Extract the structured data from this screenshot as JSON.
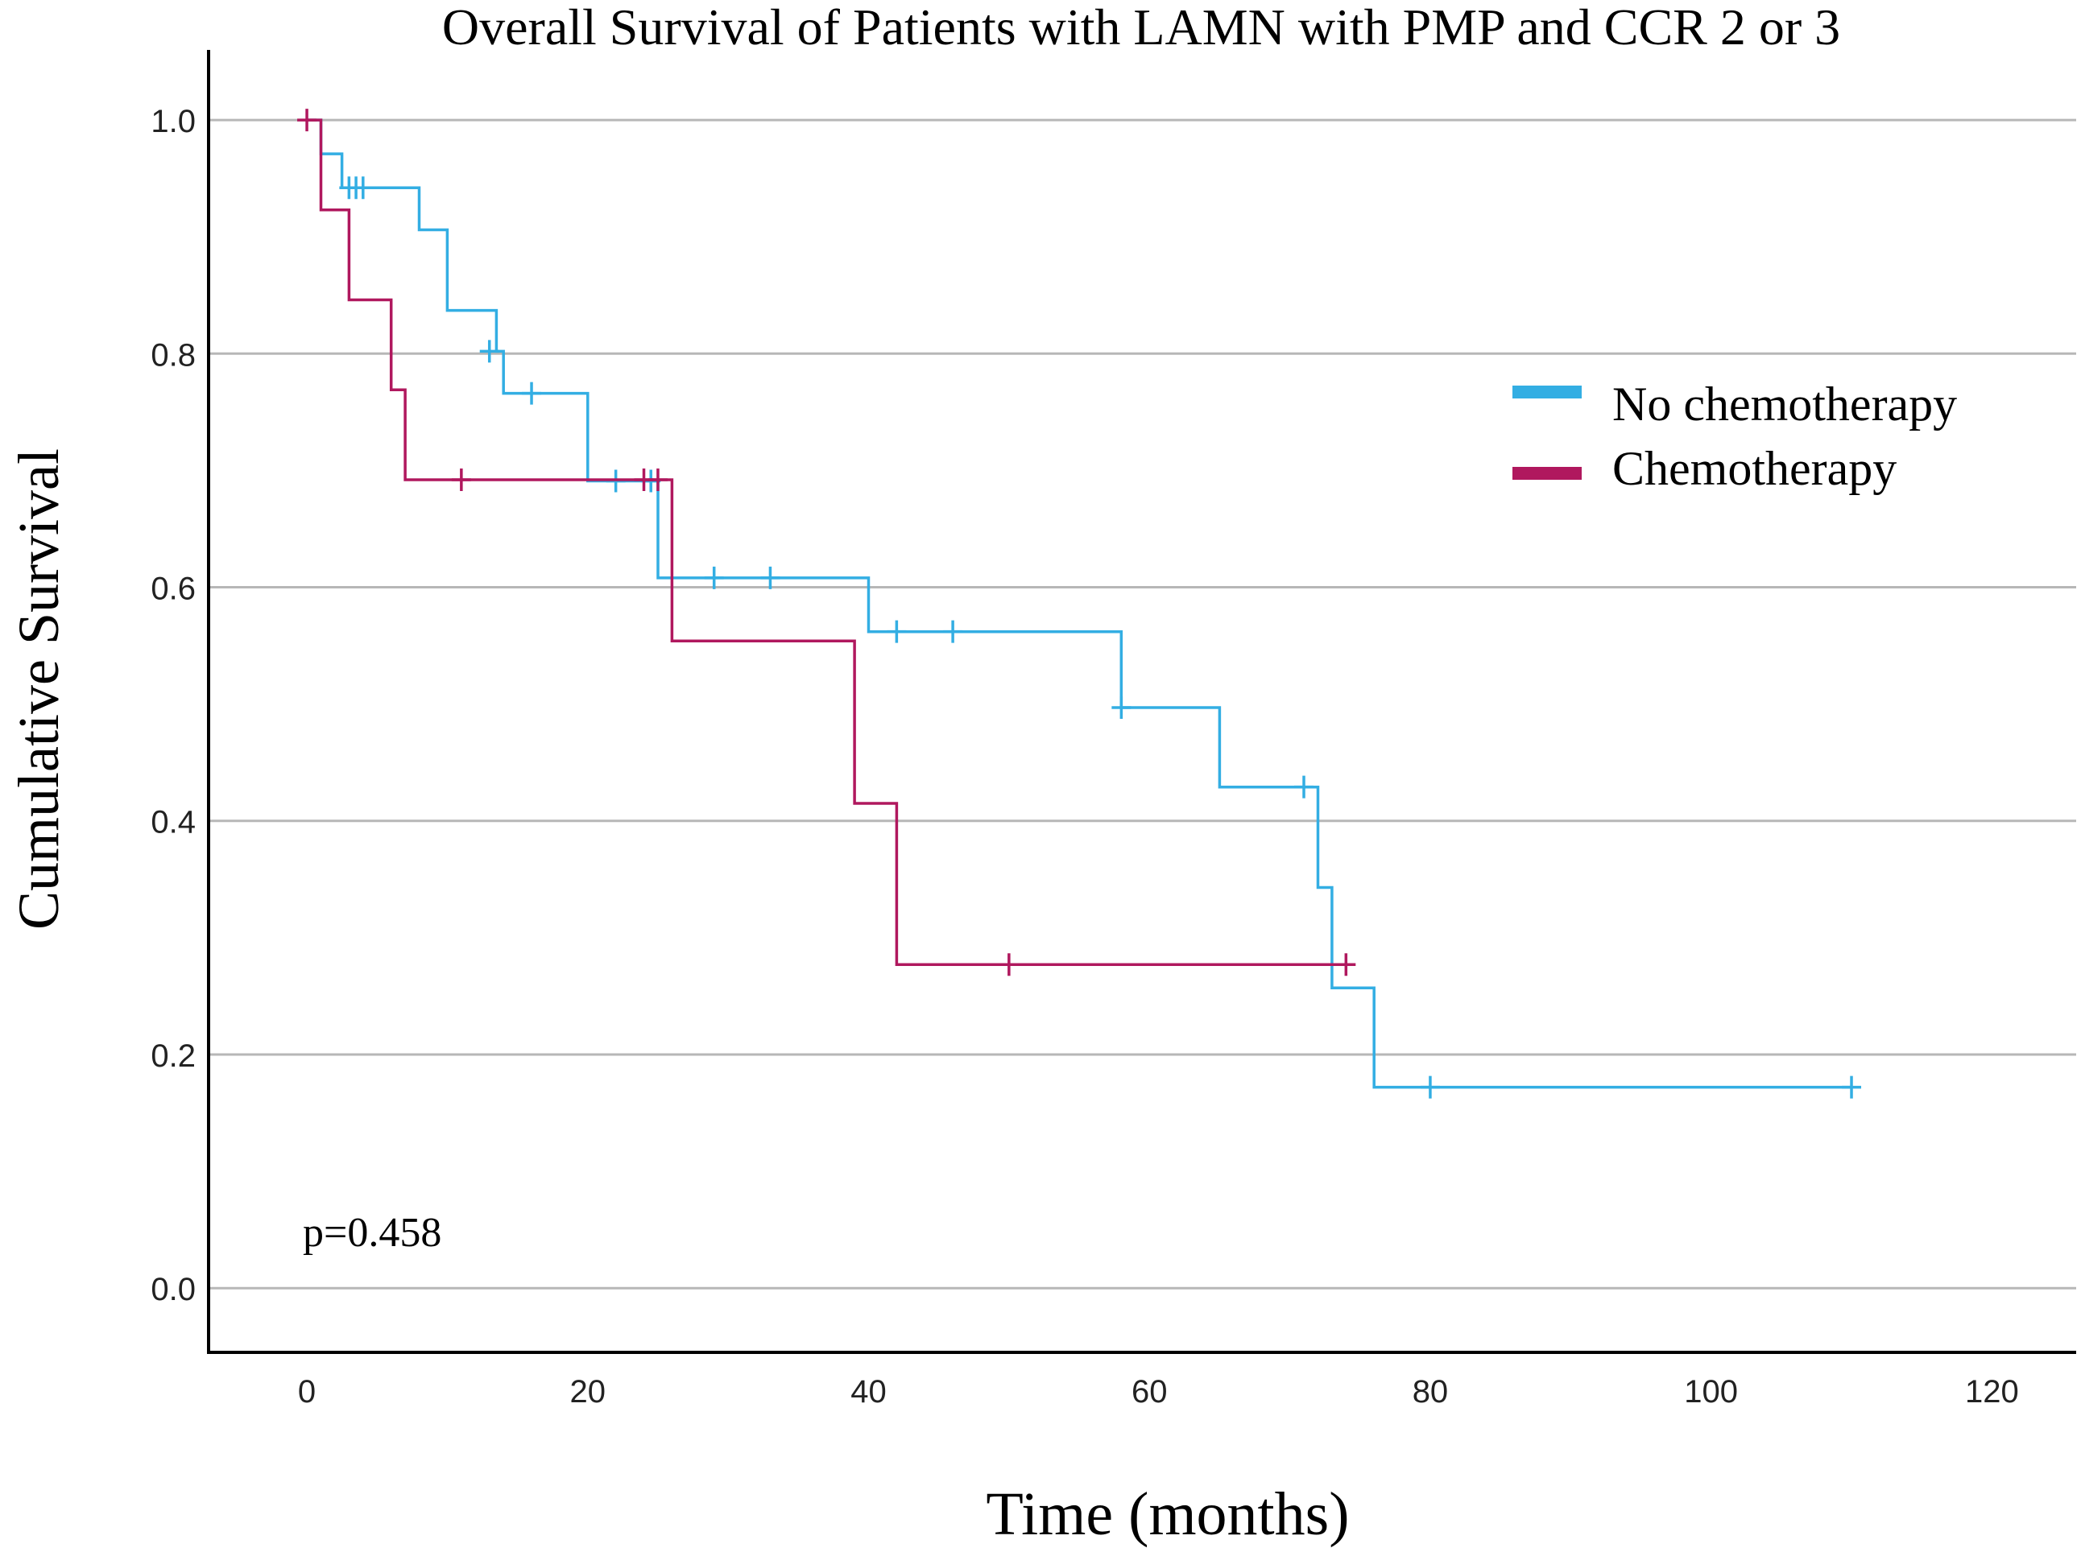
{
  "chart_data": {
    "type": "line",
    "subtype": "kaplan-meier-step",
    "title": "Overall Survival of Patients with LAMN with PMP and CCR 2 or 3",
    "xlabel": "Time (months)",
    "ylabel": "Cumulative Survival",
    "xlim": [
      -7,
      126
    ],
    "ylim": [
      -0.055,
      1.06
    ],
    "x_ticks": [
      "0",
      "20",
      "40",
      "60",
      "80",
      "100",
      "120"
    ],
    "y_ticks": [
      "0.0",
      "0.2",
      "0.4",
      "0.6",
      "0.8",
      "1.0"
    ],
    "grid": "horizontal",
    "legend_position": "right",
    "annotation": "p=0.458",
    "series": [
      {
        "name": "No chemotherapy",
        "color": "#33aee3",
        "steps": [
          [
            0,
            1.0
          ],
          [
            1,
            0.971
          ],
          [
            2.5,
            0.942
          ],
          [
            8,
            0.906
          ],
          [
            10,
            0.837
          ],
          [
            13.5,
            0.802
          ],
          [
            14,
            0.766
          ],
          [
            20,
            0.691
          ],
          [
            25,
            0.608
          ],
          [
            40,
            0.562
          ],
          [
            58,
            0.497
          ],
          [
            65,
            0.429
          ],
          [
            72,
            0.343
          ],
          [
            73,
            0.257
          ],
          [
            76,
            0.172
          ],
          [
            110,
            0.172
          ]
        ],
        "censored": [
          [
            3,
            0.942
          ],
          [
            3.5,
            0.942
          ],
          [
            4,
            0.942
          ],
          [
            13,
            0.802
          ],
          [
            16,
            0.766
          ],
          [
            22,
            0.691
          ],
          [
            24.5,
            0.691
          ],
          [
            29,
            0.608
          ],
          [
            33,
            0.608
          ],
          [
            42,
            0.562
          ],
          [
            46,
            0.562
          ],
          [
            58,
            0.497
          ],
          [
            71,
            0.429
          ],
          [
            80,
            0.172
          ],
          [
            110,
            0.172
          ]
        ]
      },
      {
        "name": "Chemotherapy",
        "color": "#b0185e",
        "steps": [
          [
            0,
            1.0
          ],
          [
            1,
            0.923
          ],
          [
            3,
            0.846
          ],
          [
            6,
            0.769
          ],
          [
            7,
            0.692
          ],
          [
            26,
            0.554
          ],
          [
            39,
            0.415
          ],
          [
            42,
            0.277
          ],
          [
            74,
            0.277
          ]
        ],
        "censored": [
          [
            0,
            1.0
          ],
          [
            11,
            0.692
          ],
          [
            24,
            0.692
          ],
          [
            25,
            0.692
          ],
          [
            50,
            0.277
          ],
          [
            74,
            0.277
          ]
        ]
      }
    ]
  }
}
